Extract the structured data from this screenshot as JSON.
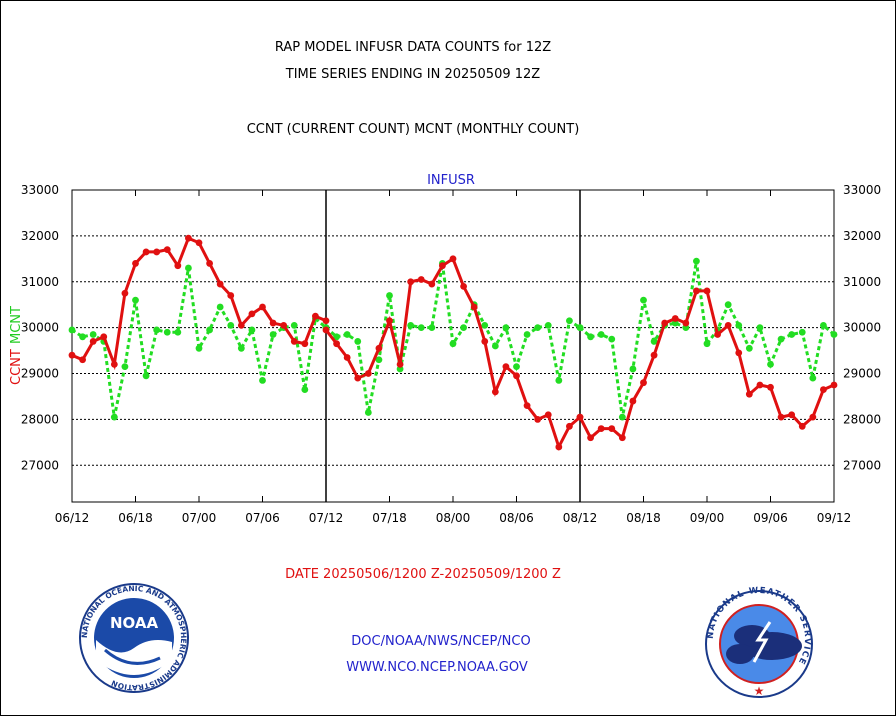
{
  "title_line1": "RAP MODEL INFUSR DATA COUNTS for 12Z",
  "title_line2": "TIME SERIES ENDING IN 20250509 12Z",
  "subtitle": "CCNT (CURRENT COUNT) MCNT (MONTHLY COUNT)",
  "date_range": "DATE 20250506/1200 Z-20250509/1200 Z",
  "footer": {
    "org": "DOC/NOAA/NWS/NCEP/NCO",
    "url": "WWW.NCO.NCEP.NOAA.GOV",
    "noaa_logo_text": "NOAA",
    "noaa_ring_text": "NATIONAL OCEANIC AND ATMOSPHERIC ADMINISTRATION",
    "noaa_ring_bottom": "U.S. DEPARTMENT OF COMMERCE",
    "nws_ring_text": "NATIONAL WEATHER SERVICE"
  },
  "colors": {
    "ccnt": "#e01010",
    "mcnt": "#22dd22",
    "panel_title": "#2222cc"
  },
  "chart_data": {
    "type": "line",
    "panel_title": "INFUSR",
    "ylabel_ccnt": "CCNT",
    "ylabel_mcnt": "MCNT",
    "ylim": [
      26200,
      33000
    ],
    "yticks": [
      27000,
      28000,
      29000,
      30000,
      31000,
      32000,
      33000
    ],
    "grid": true,
    "panels": [
      {
        "xticks": [
          "06/12",
          "06/18",
          "07/00",
          "07/06",
          "07/12"
        ],
        "ccnt": [
          29400,
          29300,
          29700,
          29800,
          29200,
          30750,
          31400,
          31650,
          31650,
          31700,
          31350,
          31950,
          31850,
          31400,
          30950,
          30700,
          30050,
          30300,
          30450,
          30100,
          30050,
          29700,
          29650,
          30250,
          30150
        ],
        "mcnt": [
          29950,
          29800,
          29850,
          29700,
          28050,
          29150,
          30600,
          28950,
          29950,
          29900,
          29900,
          31300,
          29550,
          29950,
          30450,
          30050,
          29550,
          29950,
          28850,
          29850,
          30000,
          30050,
          28650,
          30200,
          30000
        ]
      },
      {
        "xticks": [
          "07/12",
          "07/18",
          "08/00",
          "08/06",
          "08/12"
        ],
        "ccnt": [
          29950,
          29650,
          29350,
          28900,
          29000,
          29550,
          30150,
          29200,
          31000,
          31050,
          30950,
          31350,
          31500,
          30900,
          30450,
          29700,
          28600,
          29150,
          28950,
          28300,
          28000,
          28100,
          27400,
          27850,
          28050
        ],
        "mcnt": [
          30000,
          29800,
          29850,
          29700,
          28150,
          29300,
          30700,
          29100,
          30050,
          30000,
          30000,
          31400,
          29650,
          30000,
          30500,
          30050,
          29600,
          30000,
          29150,
          29850,
          30000,
          30050,
          28850,
          30150,
          30000
        ]
      },
      {
        "xticks": [
          "08/12",
          "08/18",
          "09/00",
          "09/06",
          "09/12"
        ],
        "ccnt": [
          28050,
          27600,
          27800,
          27800,
          27600,
          28400,
          28800,
          29400,
          30100,
          30200,
          30100,
          30800,
          30800,
          29850,
          30050,
          29450,
          28550,
          28750,
          28700,
          28050,
          28100,
          27850,
          28050,
          28650,
          28750
        ],
        "mcnt": [
          30000,
          29800,
          29850,
          29750,
          28050,
          29100,
          30600,
          29700,
          30050,
          30100,
          30000,
          31450,
          29650,
          29950,
          30500,
          30050,
          29550,
          30000,
          29200,
          29750,
          29850,
          29900,
          28900,
          30050,
          29850
        ]
      }
    ]
  }
}
